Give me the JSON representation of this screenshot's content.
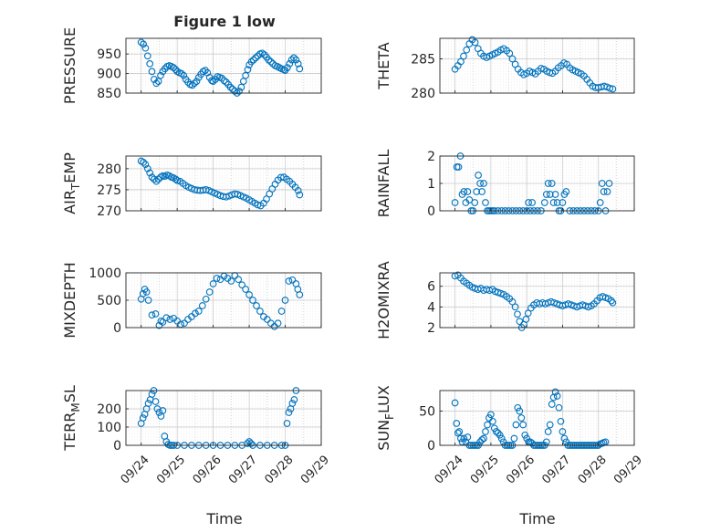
{
  "figure_title": "Figure 1 low",
  "chart_data": [
    {
      "type": "scatter",
      "title": "Figure 1 low",
      "ylabel": "PRESSURE",
      "xlabel": "",
      "xlim": [
        "09/24",
        "09/29"
      ],
      "ylim": [
        850,
        990
      ],
      "yticks": [
        850,
        900,
        950
      ],
      "xtick_labels": [],
      "grid": true,
      "color": "#0072bd",
      "x_days": [
        0.0,
        0.06,
        0.12,
        0.18,
        0.24,
        0.3,
        0.36,
        0.42,
        0.48,
        0.54,
        0.6,
        0.66,
        0.72,
        0.78,
        0.84,
        0.9,
        0.96,
        1.0,
        1.06,
        1.12,
        1.18,
        1.24,
        1.3,
        1.36,
        1.42,
        1.48,
        1.54,
        1.6,
        1.66,
        1.72,
        1.78,
        1.84,
        1.9,
        1.96,
        2.0,
        2.06,
        2.12,
        2.18,
        2.24,
        2.3,
        2.36,
        2.42,
        2.48,
        2.54,
        2.6,
        2.66,
        2.72,
        2.78,
        2.84,
        2.9,
        2.96,
        3.0,
        3.06,
        3.12,
        3.18,
        3.24,
        3.3,
        3.36,
        3.42,
        3.48,
        3.54,
        3.6,
        3.66,
        3.72,
        3.78,
        3.84,
        3.9,
        3.96,
        4.0,
        4.06,
        4.12,
        4.18,
        4.24,
        4.3,
        4.36,
        4.4
      ],
      "y": [
        980,
        975,
        965,
        945,
        925,
        905,
        885,
        875,
        880,
        895,
        905,
        912,
        918,
        920,
        918,
        915,
        910,
        905,
        902,
        900,
        895,
        885,
        878,
        872,
        870,
        875,
        880,
        890,
        898,
        905,
        908,
        902,
        890,
        882,
        880,
        885,
        892,
        890,
        888,
        882,
        878,
        872,
        865,
        860,
        855,
        850,
        855,
        865,
        880,
        895,
        910,
        922,
        930,
        935,
        940,
        945,
        950,
        952,
        948,
        942,
        935,
        930,
        925,
        920,
        918,
        915,
        912,
        910,
        908,
        915,
        925,
        935,
        940,
        935,
        925,
        912
      ],
      "xticks_days": [
        0,
        1,
        2,
        3,
        4,
        5
      ]
    },
    {
      "type": "scatter",
      "ylabel": "THETA",
      "xlim": [
        "09/24",
        "09/29"
      ],
      "ylim": [
        280,
        288
      ],
      "yticks": [
        280,
        285
      ],
      "grid": true,
      "color": "#0072bd",
      "x_days": [
        0.0,
        0.08,
        0.16,
        0.24,
        0.32,
        0.4,
        0.48,
        0.56,
        0.64,
        0.72,
        0.8,
        0.88,
        0.96,
        1.04,
        1.12,
        1.2,
        1.28,
        1.36,
        1.44,
        1.52,
        1.6,
        1.68,
        1.76,
        1.84,
        1.92,
        2.0,
        2.08,
        2.16,
        2.24,
        2.32,
        2.4,
        2.48,
        2.56,
        2.64,
        2.72,
        2.8,
        2.88,
        2.96,
        3.04,
        3.12,
        3.2,
        3.28,
        3.36,
        3.44,
        3.52,
        3.6,
        3.68,
        3.76,
        3.84,
        3.92,
        4.0,
        4.08,
        4.16,
        4.24,
        4.32,
        4.4
      ],
      "y": [
        283.5,
        284.0,
        284.6,
        285.4,
        286.3,
        287.2,
        287.8,
        287.4,
        286.5,
        285.8,
        285.4,
        285.2,
        285.4,
        285.6,
        285.8,
        286.0,
        286.3,
        286.5,
        286.2,
        285.8,
        285.0,
        284.2,
        283.5,
        283.0,
        282.7,
        282.9,
        283.2,
        283.0,
        282.8,
        283.2,
        283.6,
        283.5,
        283.2,
        283.0,
        282.9,
        283.2,
        283.7,
        284.0,
        284.4,
        284.2,
        283.7,
        283.4,
        283.2,
        283.0,
        282.8,
        282.5,
        282.0,
        281.5,
        281.0,
        280.8,
        280.8,
        280.9,
        281.0,
        280.9,
        280.7,
        280.6
      ],
      "xticks_days": [
        0,
        1,
        2,
        3,
        4,
        5
      ]
    },
    {
      "type": "scatter",
      "ylabel": "AIR_TEMP",
      "ylabel_main": "AIR",
      "ylabel_sub": "T",
      "ylabel_tail": "EMP",
      "xlim": [
        "09/24",
        "09/29"
      ],
      "ylim": [
        270,
        283
      ],
      "yticks": [
        270,
        275,
        280
      ],
      "grid": true,
      "color": "#0072bd",
      "x_days": [
        0.0,
        0.06,
        0.12,
        0.18,
        0.24,
        0.3,
        0.36,
        0.42,
        0.48,
        0.54,
        0.6,
        0.66,
        0.72,
        0.78,
        0.84,
        0.9,
        0.96,
        1.0,
        1.08,
        1.16,
        1.24,
        1.32,
        1.4,
        1.48,
        1.56,
        1.64,
        1.72,
        1.8,
        1.88,
        1.96,
        2.04,
        2.12,
        2.2,
        2.28,
        2.36,
        2.44,
        2.52,
        2.6,
        2.68,
        2.76,
        2.84,
        2.92,
        3.0,
        3.08,
        3.16,
        3.24,
        3.32,
        3.4,
        3.48,
        3.56,
        3.64,
        3.72,
        3.8,
        3.88,
        3.96,
        4.04,
        4.12,
        4.2,
        4.28,
        4.36,
        4.4
      ],
      "y": [
        281.8,
        281.5,
        281.0,
        280.0,
        279.0,
        278.0,
        277.5,
        277.0,
        277.5,
        278.0,
        278.3,
        278.2,
        278.5,
        278.3,
        278.0,
        277.8,
        277.5,
        277.2,
        277.0,
        276.5,
        276.0,
        275.6,
        275.3,
        275.0,
        274.9,
        274.8,
        274.9,
        275.0,
        274.8,
        274.5,
        274.2,
        273.9,
        273.6,
        273.4,
        273.3,
        273.5,
        273.8,
        274.0,
        273.9,
        273.6,
        273.3,
        273.0,
        272.6,
        272.2,
        271.8,
        271.4,
        271.2,
        271.8,
        272.8,
        274.0,
        275.2,
        276.3,
        277.3,
        277.9,
        278.0,
        277.5,
        277.0,
        276.3,
        275.6,
        274.8,
        273.8
      ],
      "xticks_days": [
        0,
        1,
        2,
        3,
        4,
        5
      ]
    },
    {
      "type": "scatter",
      "ylabel": "RAINFALL",
      "xlim": [
        "09/24",
        "09/29"
      ],
      "ylim": [
        0,
        2
      ],
      "yticks": [
        0,
        1,
        2
      ],
      "grid": true,
      "color": "#0072bd",
      "x_days": [
        0.0,
        0.05,
        0.1,
        0.15,
        0.2,
        0.25,
        0.3,
        0.35,
        0.4,
        0.45,
        0.5,
        0.55,
        0.6,
        0.65,
        0.7,
        0.75,
        0.8,
        0.85,
        0.9,
        0.95,
        1.0,
        1.05,
        1.1,
        1.2,
        1.3,
        1.4,
        1.5,
        1.6,
        1.7,
        1.8,
        1.9,
        2.0,
        2.05,
        2.1,
        2.15,
        2.2,
        2.3,
        2.4,
        2.5,
        2.55,
        2.6,
        2.65,
        2.7,
        2.75,
        2.8,
        2.85,
        2.9,
        2.95,
        3.0,
        3.05,
        3.1,
        3.2,
        3.3,
        3.4,
        3.5,
        3.6,
        3.7,
        3.8,
        3.9,
        4.0,
        4.05,
        4.1,
        4.15,
        4.2,
        4.25,
        4.3
      ],
      "y": [
        0.3,
        1.6,
        1.6,
        2.0,
        0.6,
        0.7,
        0.3,
        0.7,
        0.4,
        0.0,
        0.0,
        0.3,
        0.7,
        1.3,
        1.0,
        0.7,
        1.0,
        0.3,
        0.0,
        0.0,
        0.0,
        0.0,
        0.0,
        0.0,
        0.0,
        0.0,
        0.0,
        0.0,
        0.0,
        0.0,
        0.0,
        0.0,
        0.3,
        0.0,
        0.3,
        0.0,
        0.0,
        0.0,
        0.3,
        0.6,
        1.0,
        0.6,
        1.0,
        0.3,
        0.6,
        0.3,
        0.0,
        0.0,
        0.3,
        0.6,
        0.7,
        0.0,
        0.0,
        0.0,
        0.0,
        0.0,
        0.0,
        0.0,
        0.0,
        0.0,
        0.3,
        1.0,
        0.7,
        0.0,
        0.7,
        1.0
      ],
      "xticks_days": [
        0,
        1,
        2,
        3,
        4,
        5
      ]
    },
    {
      "type": "scatter",
      "ylabel": "MIXDEPTH",
      "xlim": [
        "09/24",
        "09/29"
      ],
      "ylim": [
        0,
        1000
      ],
      "yticks": [
        0,
        500,
        1000
      ],
      "grid": true,
      "color": "#0072bd",
      "x_days": [
        0.0,
        0.05,
        0.1,
        0.15,
        0.2,
        0.3,
        0.4,
        0.5,
        0.55,
        0.6,
        0.7,
        0.8,
        0.9,
        1.0,
        1.1,
        1.2,
        1.3,
        1.4,
        1.5,
        1.6,
        1.7,
        1.8,
        1.9,
        2.0,
        2.1,
        2.2,
        2.3,
        2.4,
        2.5,
        2.6,
        2.7,
        2.8,
        2.9,
        3.0,
        3.1,
        3.2,
        3.3,
        3.4,
        3.5,
        3.6,
        3.7,
        3.8,
        3.9,
        4.0,
        4.1,
        4.2,
        4.3,
        4.35,
        4.4
      ],
      "y": [
        520,
        620,
        700,
        650,
        500,
        230,
        250,
        40,
        120,
        100,
        180,
        150,
        170,
        120,
        60,
        80,
        150,
        200,
        260,
        300,
        400,
        520,
        650,
        800,
        900,
        880,
        940,
        900,
        850,
        950,
        880,
        780,
        700,
        600,
        500,
        400,
        300,
        200,
        150,
        80,
        20,
        80,
        300,
        500,
        850,
        870,
        800,
        700,
        600
      ],
      "xticks_days": [
        0,
        1,
        2,
        3,
        4,
        5
      ]
    },
    {
      "type": "scatter",
      "ylabel": "H2OMIXRA",
      "xlim": [
        "09/24",
        "09/29"
      ],
      "ylim": [
        2,
        7.3
      ],
      "yticks": [
        2,
        4,
        6
      ],
      "grid": true,
      "color": "#0072bd",
      "x_days": [
        0.0,
        0.08,
        0.16,
        0.24,
        0.32,
        0.4,
        0.48,
        0.56,
        0.64,
        0.72,
        0.8,
        0.88,
        0.96,
        1.04,
        1.12,
        1.2,
        1.28,
        1.36,
        1.44,
        1.52,
        1.6,
        1.68,
        1.74,
        1.8,
        1.86,
        1.92,
        1.98,
        2.04,
        2.12,
        2.2,
        2.28,
        2.36,
        2.44,
        2.52,
        2.6,
        2.68,
        2.76,
        2.84,
        2.92,
        3.0,
        3.08,
        3.16,
        3.24,
        3.32,
        3.4,
        3.48,
        3.56,
        3.64,
        3.72,
        3.8,
        3.88,
        3.96,
        4.04,
        4.12,
        4.2,
        4.28,
        4.36,
        4.4
      ],
      "y": [
        7.0,
        7.1,
        6.8,
        6.5,
        6.3,
        6.1,
        5.9,
        5.8,
        5.7,
        5.8,
        5.6,
        5.7,
        5.6,
        5.7,
        5.5,
        5.4,
        5.3,
        5.2,
        5.0,
        4.8,
        4.5,
        4.0,
        3.3,
        2.6,
        2.0,
        2.3,
        2.8,
        3.4,
        3.9,
        4.2,
        4.4,
        4.3,
        4.4,
        4.3,
        4.4,
        4.5,
        4.4,
        4.3,
        4.2,
        4.1,
        4.2,
        4.3,
        4.2,
        4.1,
        4.0,
        4.1,
        4.2,
        4.1,
        4.0,
        4.1,
        4.3,
        4.6,
        4.9,
        5.0,
        4.9,
        4.8,
        4.6,
        4.4
      ],
      "xticks_days": [
        0,
        1,
        2,
        3,
        4,
        5
      ]
    },
    {
      "type": "scatter",
      "ylabel": "TERR_MSL",
      "ylabel_main": "TERR",
      "ylabel_sub": "M",
      "ylabel_tail": "SL",
      "xlim": [
        "09/24",
        "09/29"
      ],
      "ylim": [
        0,
        300
      ],
      "yticks": [
        0,
        100,
        200
      ],
      "grid": true,
      "color": "#0072bd",
      "x_days": [
        0.0,
        0.05,
        0.1,
        0.15,
        0.2,
        0.25,
        0.3,
        0.35,
        0.4,
        0.45,
        0.5,
        0.55,
        0.6,
        0.65,
        0.7,
        0.75,
        0.8,
        0.85,
        0.9,
        1.0,
        1.2,
        1.4,
        1.6,
        1.8,
        2.0,
        2.2,
        2.4,
        2.6,
        2.8,
        2.95,
        3.0,
        3.05,
        3.1,
        3.3,
        3.5,
        3.7,
        3.9,
        4.0,
        4.05,
        4.1,
        4.15,
        4.2,
        4.25,
        4.3
      ],
      "y": [
        120,
        150,
        170,
        200,
        230,
        250,
        280,
        300,
        240,
        200,
        180,
        160,
        190,
        50,
        20,
        5,
        0,
        0,
        0,
        0,
        0,
        0,
        0,
        0,
        0,
        0,
        0,
        0,
        0,
        10,
        20,
        10,
        0,
        0,
        0,
        0,
        0,
        0,
        120,
        180,
        200,
        230,
        250,
        300
      ],
      "xticks_days": [
        0,
        1,
        2,
        3,
        4,
        5
      ]
    },
    {
      "type": "scatter",
      "ylabel": "SUN_FLUX",
      "ylabel_main": "SUN",
      "ylabel_sub": "F",
      "ylabel_tail": "LUX",
      "xlim": [
        "09/24",
        "09/29"
      ],
      "ylim": [
        0,
        80
      ],
      "yticks": [
        0,
        50
      ],
      "grid": true,
      "color": "#0072bd",
      "x_days": [
        0.0,
        0.04,
        0.08,
        0.12,
        0.16,
        0.2,
        0.25,
        0.3,
        0.35,
        0.4,
        0.45,
        0.5,
        0.55,
        0.6,
        0.65,
        0.7,
        0.75,
        0.8,
        0.85,
        0.9,
        0.95,
        1.0,
        1.05,
        1.1,
        1.15,
        1.2,
        1.25,
        1.3,
        1.35,
        1.4,
        1.45,
        1.5,
        1.55,
        1.6,
        1.65,
        1.7,
        1.75,
        1.8,
        1.85,
        1.9,
        1.95,
        2.0,
        2.05,
        2.1,
        2.15,
        2.2,
        2.25,
        2.3,
        2.35,
        2.4,
        2.45,
        2.5,
        2.55,
        2.6,
        2.65,
        2.7,
        2.75,
        2.8,
        2.85,
        2.9,
        2.95,
        3.0,
        3.05,
        3.1,
        3.15,
        3.2,
        3.25,
        3.3,
        3.35,
        3.4,
        3.45,
        3.5,
        3.55,
        3.6,
        3.65,
        3.7,
        3.75,
        3.8,
        3.85,
        3.9,
        3.95,
        4.0,
        4.05,
        4.1,
        4.15,
        4.2
      ],
      "y": [
        62,
        32,
        18,
        20,
        10,
        5,
        10,
        5,
        12,
        0,
        0,
        0,
        0,
        0,
        0,
        5,
        8,
        10,
        20,
        30,
        40,
        45,
        35,
        25,
        20,
        18,
        15,
        10,
        5,
        0,
        0,
        0,
        0,
        0,
        10,
        30,
        55,
        50,
        40,
        30,
        15,
        10,
        5,
        5,
        3,
        0,
        0,
        0,
        0,
        0,
        0,
        0,
        5,
        20,
        30,
        60,
        70,
        78,
        72,
        55,
        35,
        20,
        10,
        5,
        0,
        0,
        0,
        0,
        0,
        0,
        0,
        0,
        0,
        0,
        0,
        0,
        0,
        0,
        0,
        0,
        0,
        0,
        2,
        3,
        4,
        5
      ],
      "xticks_days": [
        0,
        1,
        2,
        3,
        4,
        5
      ]
    }
  ],
  "x_axis": {
    "tick_labels": [
      "09/24",
      "09/25",
      "09/26",
      "09/27",
      "09/28",
      "09/29"
    ],
    "label": "Time"
  }
}
